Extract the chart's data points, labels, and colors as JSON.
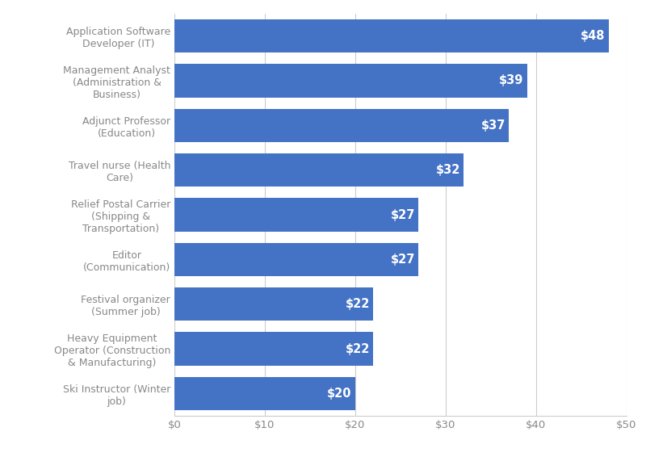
{
  "categories": [
    "Application Software\nDeveloper (IT)",
    "Management Analyst\n(Administration &\nBusiness)",
    "Adjunct Professor\n(Education)",
    "Travel nurse (Health\nCare)",
    "Relief Postal Carrier\n(Shipping &\nTransportation)",
    "Editor\n(Communication)",
    "Festival organizer\n(Summer job)",
    "Heavy Equipment\nOperator (Construction\n& Manufacturing)",
    "Ski Instructor (Winter\njob)"
  ],
  "values": [
    48,
    39,
    37,
    32,
    27,
    27,
    22,
    22,
    20
  ],
  "bar_color": "#4472C4",
  "label_color": "#ffffff",
  "background_color": "#ffffff",
  "xlim": [
    0,
    50
  ],
  "xticks": [
    0,
    10,
    20,
    30,
    40,
    50
  ],
  "bar_height": 0.75,
  "label_fontsize": 10.5,
  "tick_fontsize": 9.5,
  "ytick_fontsize": 9.0,
  "grid_color": "#cccccc",
  "spine_color": "#cccccc",
  "ytick_color": "#888888",
  "xtick_color": "#888888"
}
